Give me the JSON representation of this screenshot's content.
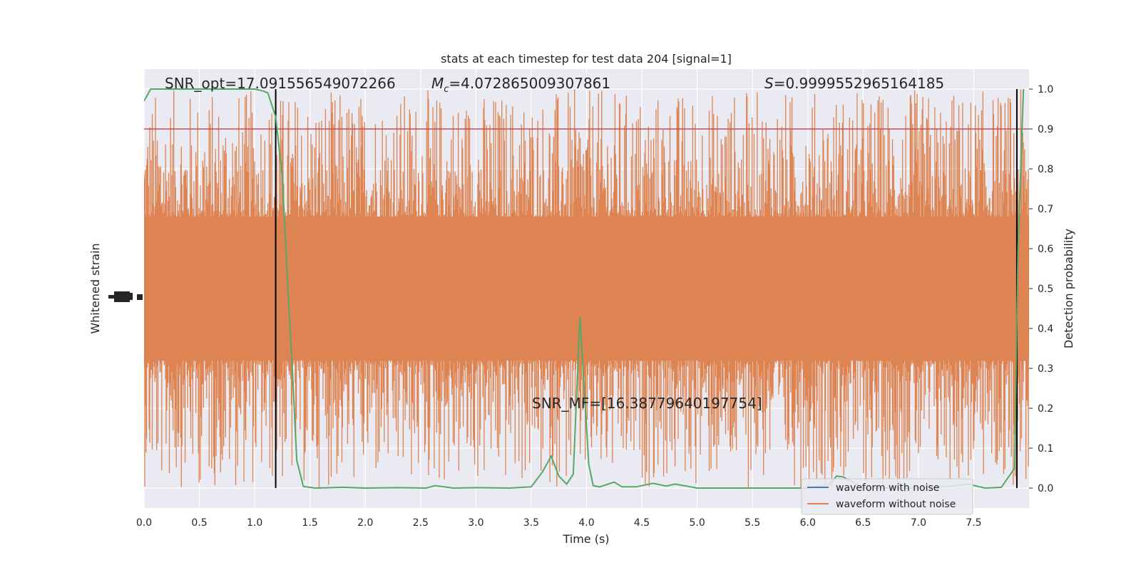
{
  "chart_data": {
    "type": "line",
    "title": "stats at each timestep for test data 204 [signal=1]",
    "xlabel": "Time (s)",
    "ylabel_left": "Whitened strain",
    "ylabel_right": "Detection probability",
    "xlim": [
      0.0,
      8.0
    ],
    "right_ylim": [
      -0.05,
      1.05
    ],
    "x_ticks": [
      "0.0",
      "0.5",
      "1.0",
      "1.5",
      "2.0",
      "2.5",
      "3.0",
      "3.5",
      "4.0",
      "4.5",
      "5.0",
      "5.5",
      "6.0",
      "6.5",
      "7.0",
      "7.5"
    ],
    "right_y_ticks": [
      "0.0",
      "0.1",
      "0.2",
      "0.3",
      "0.4",
      "0.5",
      "0.6",
      "0.7",
      "0.8",
      "0.9",
      "1.0"
    ],
    "grid": true,
    "legend_position": "lower-right",
    "annotations": {
      "snr_opt": "SNR_opt=17.091556549072266",
      "chirp_mass": "=4.072865009307861",
      "chirp_mass_symbol": "M",
      "chirp_mass_sub": "c",
      "significance": "=0.9999552965164185",
      "significance_symbol": "S",
      "snr_mf": "SNR_MF=[16.38779640197754]"
    },
    "series": [
      {
        "name": "waveform with noise",
        "color": "#4c72b0"
      },
      {
        "name": "waveform without noise",
        "color": "#dd8452"
      }
    ],
    "strain_band": {
      "center_prob": 0.5,
      "core_halfwidth": 0.18,
      "spike_max_halfwidth": 0.5
    },
    "detection_probability": {
      "color": "#55a868",
      "points": [
        [
          0.0,
          0.97
        ],
        [
          0.06,
          1.0
        ],
        [
          0.5,
          1.0
        ],
        [
          1.0,
          1.0
        ],
        [
          1.08,
          0.995
        ],
        [
          1.12,
          0.99
        ],
        [
          1.19,
          0.93
        ],
        [
          1.25,
          0.78
        ],
        [
          1.3,
          0.5
        ],
        [
          1.34,
          0.3
        ],
        [
          1.38,
          0.07
        ],
        [
          1.44,
          0.004
        ],
        [
          1.55,
          0.0
        ],
        [
          1.8,
          0.002
        ],
        [
          2.0,
          0.0
        ],
        [
          2.3,
          0.001
        ],
        [
          2.55,
          0.0
        ],
        [
          2.63,
          0.006
        ],
        [
          2.8,
          0.0
        ],
        [
          3.0,
          0.001
        ],
        [
          3.3,
          0.0
        ],
        [
          3.5,
          0.003
        ],
        [
          3.6,
          0.04
        ],
        [
          3.68,
          0.08
        ],
        [
          3.75,
          0.03
        ],
        [
          3.82,
          0.01
        ],
        [
          3.88,
          0.035
        ],
        [
          3.94,
          0.43
        ],
        [
          4.02,
          0.06
        ],
        [
          4.06,
          0.006
        ],
        [
          4.12,
          0.003
        ],
        [
          4.25,
          0.015
        ],
        [
          4.32,
          0.003
        ],
        [
          4.45,
          0.003
        ],
        [
          4.6,
          0.012
        ],
        [
          4.72,
          0.005
        ],
        [
          4.8,
          0.01
        ],
        [
          5.0,
          0.0
        ],
        [
          5.5,
          0.0
        ],
        [
          6.0,
          0.0
        ],
        [
          6.2,
          0.01
        ],
        [
          6.26,
          0.03
        ],
        [
          6.32,
          0.028
        ],
        [
          6.5,
          0.0
        ],
        [
          7.0,
          0.0
        ],
        [
          7.3,
          0.005
        ],
        [
          7.45,
          0.01
        ],
        [
          7.6,
          0.0
        ],
        [
          7.75,
          0.002
        ],
        [
          7.87,
          0.05
        ],
        [
          7.9,
          0.6
        ],
        [
          7.95,
          1.0
        ]
      ]
    },
    "threshold": {
      "value": 0.9,
      "color": "#c44e52"
    },
    "vertical_markers": [
      1.19,
      7.89
    ]
  }
}
